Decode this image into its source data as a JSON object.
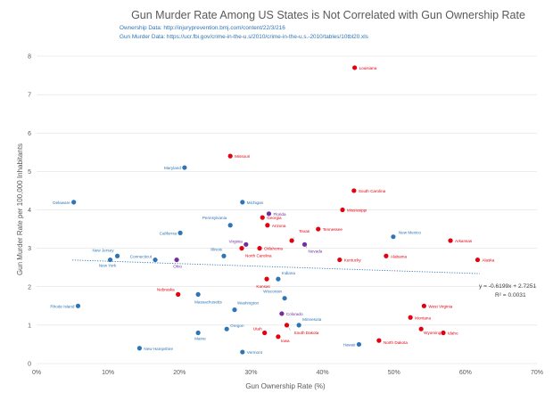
{
  "chart_data": {
    "type": "scatter",
    "title": "Gun Murder Rate Among US States is Not Correlated with Gun Ownership Rate",
    "subtitle_lines": [
      "Ownership Data: http://injuryprevention.bmj.com/content/22/3/216",
      "Gun Murder Data: https://ucr.fbi.gov/crime-in-the-u.s/2010/crime-in-the-u.s.-2010/tables/10tbl20.xls"
    ],
    "xlabel": "Gun Ownership Rate (%)",
    "ylabel": "Gun Murder Rate per 100,000 Inhabitants",
    "xlim": [
      0,
      70
    ],
    "ylim": [
      0,
      8
    ],
    "x_ticks": [
      0,
      10,
      20,
      30,
      40,
      50,
      60,
      70
    ],
    "x_tick_labels": [
      "0%",
      "10%",
      "20%",
      "30%",
      "40%",
      "50%",
      "60%",
      "70%"
    ],
    "y_ticks": [
      0,
      1,
      2,
      3,
      4,
      5,
      6,
      7,
      8
    ],
    "y_tick_labels": [
      "0",
      "1",
      "2",
      "3",
      "4",
      "5",
      "6",
      "7",
      "8"
    ],
    "grid": "horizontal",
    "colors": {
      "red": "#e3000f",
      "blue": "#2e75b6",
      "purple": "#7030a0"
    },
    "trendline": {
      "slope": -0.6199,
      "intercept": 2.7251,
      "x_range": [
        5,
        62
      ]
    },
    "equation_lines": [
      "y = -0.6199x + 2.7251",
      "R² = 0.0031"
    ],
    "points": [
      {
        "label": "Louisiana",
        "x": 44.5,
        "y": 7.7,
        "color": "red"
      },
      {
        "label": "Missouri",
        "x": 27.1,
        "y": 5.4,
        "color": "red"
      },
      {
        "label": "Maryland",
        "x": 20.7,
        "y": 5.1,
        "color": "blue"
      },
      {
        "label": "South Carolina",
        "x": 44.4,
        "y": 4.5,
        "color": "red"
      },
      {
        "label": "Delaware",
        "x": 5.2,
        "y": 4.2,
        "color": "blue"
      },
      {
        "label": "Michigan",
        "x": 28.8,
        "y": 4.2,
        "color": "blue"
      },
      {
        "label": "Mississippi",
        "x": 42.8,
        "y": 4.0,
        "color": "red"
      },
      {
        "label": "Florida",
        "x": 32.5,
        "y": 3.9,
        "color": "purple"
      },
      {
        "label": "Georgia",
        "x": 31.6,
        "y": 3.8,
        "color": "red"
      },
      {
        "label": "Arizona",
        "x": 32.3,
        "y": 3.6,
        "color": "red"
      },
      {
        "label": "Pennsylvania",
        "x": 27.1,
        "y": 3.6,
        "color": "blue"
      },
      {
        "label": "Tennessee",
        "x": 39.4,
        "y": 3.5,
        "color": "red"
      },
      {
        "label": "California",
        "x": 20.1,
        "y": 3.4,
        "color": "blue"
      },
      {
        "label": "New Mexico",
        "x": 49.9,
        "y": 3.3,
        "color": "blue"
      },
      {
        "label": "Arkansas",
        "x": 57.9,
        "y": 3.2,
        "color": "red"
      },
      {
        "label": "Texas",
        "x": 35.7,
        "y": 3.2,
        "color": "red"
      },
      {
        "label": "Virginia",
        "x": 29.3,
        "y": 3.1,
        "color": "purple"
      },
      {
        "label": "Nevada",
        "x": 37.5,
        "y": 3.1,
        "color": "purple"
      },
      {
        "label": "Oklahoma",
        "x": 31.2,
        "y": 3.0,
        "color": "red"
      },
      {
        "label": "North Carolina",
        "x": 28.7,
        "y": 3.0,
        "color": "red"
      },
      {
        "label": "New Jersey",
        "x": 11.3,
        "y": 2.8,
        "color": "blue"
      },
      {
        "label": "Illinois",
        "x": 26.2,
        "y": 2.8,
        "color": "blue"
      },
      {
        "label": "Alabama",
        "x": 48.9,
        "y": 2.8,
        "color": "red"
      },
      {
        "label": "Connecticut",
        "x": 16.6,
        "y": 2.7,
        "color": "blue"
      },
      {
        "label": "New York",
        "x": 10.3,
        "y": 2.7,
        "color": "blue"
      },
      {
        "label": "Ohio",
        "x": 19.6,
        "y": 2.7,
        "color": "purple"
      },
      {
        "label": "Kentucky",
        "x": 42.4,
        "y": 2.7,
        "color": "red"
      },
      {
        "label": "Alaska",
        "x": 61.7,
        "y": 2.7,
        "color": "red"
      },
      {
        "label": "Indiana",
        "x": 33.8,
        "y": 2.2,
        "color": "blue"
      },
      {
        "label": "Kansas",
        "x": 32.2,
        "y": 2.2,
        "color": "red"
      },
      {
        "label": "Nebraska",
        "x": 19.8,
        "y": 1.8,
        "color": "red"
      },
      {
        "label": "Massachusetts",
        "x": 22.6,
        "y": 1.8,
        "color": "blue"
      },
      {
        "label": "Wisconsin",
        "x": 34.7,
        "y": 1.7,
        "color": "blue"
      },
      {
        "label": "Rhode Island",
        "x": 5.8,
        "y": 1.5,
        "color": "blue"
      },
      {
        "label": "West Virginia",
        "x": 54.2,
        "y": 1.5,
        "color": "red"
      },
      {
        "label": "Washington",
        "x": 27.7,
        "y": 1.4,
        "color": "blue"
      },
      {
        "label": "Colorado",
        "x": 34.3,
        "y": 1.3,
        "color": "purple"
      },
      {
        "label": "Montana",
        "x": 52.3,
        "y": 1.2,
        "color": "red"
      },
      {
        "label": "Minnesota",
        "x": 36.7,
        "y": 1.0,
        "color": "blue"
      },
      {
        "label": "Iowa",
        "x": 33.8,
        "y": 0.7,
        "color": "red"
      },
      {
        "label": "Utah",
        "x": 31.9,
        "y": 0.8,
        "color": "red"
      },
      {
        "label": "South Dakota",
        "x": 35.0,
        "y": 1.0,
        "color": "red"
      },
      {
        "label": "Wyoming",
        "x": 53.8,
        "y": 0.9,
        "color": "red"
      },
      {
        "label": "Oregon",
        "x": 26.6,
        "y": 0.9,
        "color": "blue"
      },
      {
        "label": "Idaho",
        "x": 56.9,
        "y": 0.8,
        "color": "red"
      },
      {
        "label": "Maine",
        "x": 22.6,
        "y": 0.8,
        "color": "blue"
      },
      {
        "label": "North Dakota",
        "x": 47.9,
        "y": 0.6,
        "color": "red"
      },
      {
        "label": "Hawaii",
        "x": 45.1,
        "y": 0.5,
        "color": "blue"
      },
      {
        "label": "New Hampshire",
        "x": 14.4,
        "y": 0.4,
        "color": "blue"
      },
      {
        "label": "Vermont",
        "x": 28.8,
        "y": 0.3,
        "color": "blue"
      }
    ]
  }
}
